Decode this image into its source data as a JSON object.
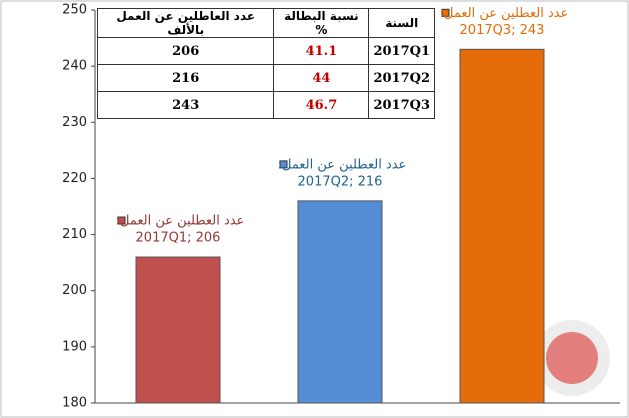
{
  "chart_data": {
    "type": "bar",
    "categories": [
      "2017Q1",
      "2017Q2",
      "2017Q3"
    ],
    "series": [
      {
        "name": "عدد العطلين عن العمل:",
        "values": [
          206,
          216,
          243
        ]
      }
    ],
    "value_labels": [
      "2017Q1; 206",
      "2017Q2; 216",
      "2017Q3; 243"
    ],
    "colors": [
      "#c0504d",
      "#558ed5",
      "#e46c0a"
    ],
    "label_colors": [
      "#953735",
      "#1f6391",
      "#e46c0a"
    ],
    "ylim": [
      180,
      250
    ],
    "yticks": [
      180,
      190,
      200,
      210,
      220,
      230,
      240,
      250
    ],
    "table": {
      "columns": [
        "السنة",
        "نسبة البطالة %",
        "عدد العاطلين عن العمل بالألف"
      ],
      "rows": [
        [
          "2017Q1",
          41.1,
          206
        ],
        [
          "2017Q2",
          44,
          216
        ],
        [
          "2017Q3",
          46.7,
          243
        ]
      ]
    }
  }
}
